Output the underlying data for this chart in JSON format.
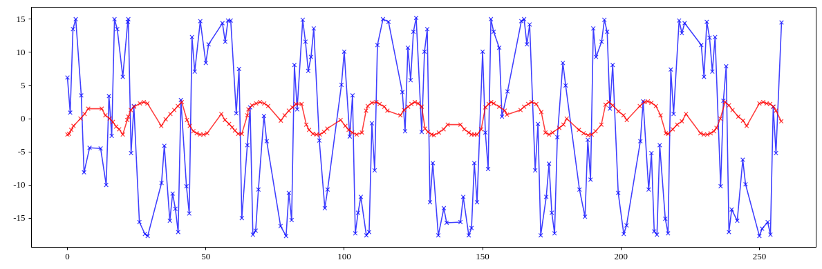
{
  "chart_data": {
    "type": "line",
    "marker": "cross",
    "line_style": "solid",
    "grid": false,
    "xlim": [
      -13,
      270.5
    ],
    "ylim": [
      -19.4,
      16.8
    ],
    "xticks": [
      0,
      50,
      100,
      150,
      200,
      250
    ],
    "yticks": [
      -15,
      -10,
      -5,
      0,
      5,
      10,
      15
    ],
    "series": [
      {
        "color": "#0000ff",
        "x": [
          0,
          1,
          2,
          3,
          5,
          6,
          8,
          12,
          14,
          15,
          16,
          17,
          18,
          20,
          21.8,
          22,
          23,
          24,
          26,
          28,
          29,
          34,
          35,
          37,
          38,
          39,
          40,
          41,
          43,
          44,
          45,
          46,
          48,
          50,
          51,
          56,
          57,
          58,
          59,
          61,
          62,
          63,
          65,
          66,
          67,
          68,
          69,
          71,
          72,
          77,
          79,
          80,
          81,
          82,
          83,
          85,
          86,
          87,
          88,
          89,
          91,
          93,
          94,
          99,
          100,
          102,
          103,
          104,
          105,
          106,
          108,
          109,
          110,
          111,
          112,
          114,
          116,
          121,
          122,
          123,
          124,
          125,
          126,
          128,
          129,
          130,
          131,
          132,
          134,
          136,
          137,
          142,
          143,
          145,
          146,
          147,
          148,
          150,
          151,
          152,
          153,
          154,
          156,
          157,
          159,
          164,
          165,
          166,
          167,
          169,
          170,
          171,
          173,
          174,
          175,
          176,
          177,
          179,
          180,
          185,
          187,
          188,
          189,
          190,
          191,
          193,
          194,
          195,
          196,
          197,
          199,
          201,
          202,
          207,
          208,
          210,
          211,
          212,
          213,
          214,
          216,
          217,
          218,
          219,
          221,
          222,
          223,
          229,
          230,
          231,
          232,
          233,
          234,
          236,
          237,
          238,
          239,
          240,
          242,
          244,
          245,
          250,
          251,
          253,
          254,
          255,
          256,
          258
        ],
        "values": [
          6.2,
          0.9,
          13.5,
          15.0,
          3.5,
          -8.1,
          -4.4,
          -4.5,
          -10.0,
          3.4,
          -2.6,
          15.0,
          13.5,
          6.3,
          14.6,
          15.0,
          -5.2,
          1.9,
          -15.6,
          -17.4,
          -17.7,
          -9.7,
          -4.1,
          -15.4,
          -11.3,
          -13.6,
          -17.1,
          2.8,
          -10.2,
          -14.3,
          12.3,
          7.1,
          14.7,
          8.4,
          11.2,
          14.4,
          11.6,
          14.8,
          14.8,
          0.8,
          7.5,
          -15.0,
          -4.0,
          1.7,
          -17.5,
          -16.9,
          -10.7,
          0.4,
          -3.4,
          -16.2,
          -17.7,
          -11.2,
          -15.3,
          8.1,
          1.4,
          14.9,
          11.6,
          7.2,
          9.3,
          13.6,
          -3.3,
          -13.5,
          -10.7,
          5.1,
          10.1,
          -2.7,
          3.5,
          -17.3,
          -14.2,
          -11.8,
          -17.6,
          -17.1,
          -0.7,
          -7.8,
          11.1,
          15.0,
          14.6,
          4.0,
          -1.9,
          10.7,
          5.8,
          13.1,
          15.2,
          -2.0,
          10.1,
          13.5,
          -12.6,
          -6.7,
          -17.6,
          -13.5,
          -15.7,
          -15.6,
          -11.8,
          -17.6,
          -16.5,
          -6.7,
          -12.6,
          10.1,
          -2.1,
          -7.6,
          15.0,
          13.1,
          10.7,
          0.3,
          4.1,
          14.7,
          15.0,
          11.2,
          14.2,
          -7.8,
          -0.8,
          -17.6,
          -11.8,
          -6.8,
          -14.2,
          -17.3,
          -2.8,
          8.4,
          5.0,
          -10.7,
          -14.8,
          -3.2,
          -9.2,
          13.6,
          9.3,
          11.6,
          14.9,
          13.1,
          1.5,
          8.1,
          -11.2,
          -17.4,
          -16.1,
          -3.4,
          2.6,
          -10.7,
          -5.2,
          -17.0,
          -17.5,
          -4.0,
          -15.1,
          -17.3,
          7.4,
          0.7,
          14.8,
          12.9,
          14.4,
          11.1,
          6.3,
          14.6,
          12.2,
          7.1,
          12.3,
          -10.2,
          2.7,
          7.9,
          -17.1,
          -13.7,
          -15.4,
          -6.2,
          -9.9,
          -17.7,
          -16.6,
          -15.6,
          -17.5,
          1.8,
          -5.2,
          14.5
        ]
      },
      {
        "color": "#ff0000",
        "x": [
          0,
          0.6,
          1.4,
          2.2,
          4.7,
          6.2,
          7.5,
          12.4,
          13.7,
          15.3,
          16.4,
          17.6,
          18.7,
          20,
          21.6,
          22,
          22.9,
          24.1,
          26.2,
          27.6,
          28.9,
          33.9,
          35.5,
          37.2,
          38.6,
          39.9,
          41.3,
          43.2,
          44.2,
          45.5,
          46.7,
          47.9,
          49.2,
          50.5,
          55.6,
          56.9,
          58.4,
          59.5,
          60.5,
          61.7,
          63,
          65,
          65.4,
          66.7,
          68.2,
          69.6,
          71.1,
          72.5,
          77.1,
          78.5,
          80,
          81.3,
          82.6,
          84.6,
          86.3,
          87.3,
          88.7,
          90,
          91.2,
          92.7,
          93.9,
          98.7,
          100.4,
          101.6,
          102.9,
          104.5,
          106.4,
          107.9,
          108.5,
          110,
          111.6,
          112.8,
          114.5,
          115.6,
          120.3,
          121.6,
          123.1,
          124.3,
          125.5,
          126.7,
          128,
          129.2,
          130.3,
          131.6,
          132.4,
          134.2,
          135.9,
          137.4,
          142,
          143.4,
          145,
          146,
          147,
          148,
          149.5,
          151,
          152.2,
          153.1,
          154,
          156,
          158,
          158.8,
          163.7,
          165,
          166.5,
          167.7,
          169.4,
          171.2,
          172.7,
          174,
          175.3,
          177.7,
          179.2,
          180.4,
          184.8,
          186.5,
          188.1,
          189.4,
          190.8,
          192.9,
          194.4,
          195.6,
          197,
          199.1,
          200.9,
          202.1,
          206.8,
          208.5,
          209.7,
          211,
          212.6,
          214.3,
          216.2,
          217,
          218.7,
          220.3,
          222,
          223.5,
          228.7,
          229.9,
          231.2,
          232.4,
          233.6,
          234.5,
          235.9,
          237.6,
          239,
          240.3,
          242.4,
          244.1,
          245.4,
          250,
          251.4,
          252.6,
          253.9,
          255.1,
          256,
          257.9
        ],
        "values": [
          -2.4,
          -2.3,
          -1.7,
          -1.1,
          0,
          0.7,
          1.5,
          1.5,
          0.5,
          0,
          -0.5,
          -1.2,
          -1.6,
          -2.4,
          -0.2,
          0.3,
          1.3,
          1.8,
          2.3,
          2.5,
          2.3,
          -1.1,
          -0.1,
          0.7,
          1.3,
          1.9,
          2.5,
          -0.2,
          -1.1,
          -1.9,
          -2.2,
          -2.4,
          -2.4,
          -2.2,
          0.7,
          -0.2,
          -0.8,
          -1.3,
          -1.8,
          -2.3,
          -2.3,
          0.5,
          1.4,
          2.0,
          2.3,
          2.5,
          2.3,
          1.9,
          -0.3,
          0.5,
          1.2,
          1.7,
          2.2,
          2.2,
          -0.9,
          -1.7,
          -2.3,
          -2.4,
          -2.4,
          -2.0,
          -1.5,
          -0.2,
          -1.1,
          -1.7,
          -2.1,
          -2.4,
          -2.1,
          1.2,
          1.9,
          2.4,
          2.5,
          2.2,
          1.8,
          1.2,
          0.5,
          1.3,
          1.8,
          2.2,
          2.5,
          2.3,
          1.8,
          -1.5,
          -2.0,
          -2.4,
          -2.5,
          -2.1,
          -1.6,
          -0.9,
          -0.9,
          -1.6,
          -2.1,
          -2.4,
          -2.4,
          -2.4,
          -1.6,
          1.7,
          2.2,
          2.5,
          2.3,
          1.8,
          1.2,
          0.6,
          1.3,
          1.8,
          2.2,
          2.5,
          2.2,
          1.0,
          -2.1,
          -2.4,
          -2.1,
          -1.4,
          -0.9,
          0,
          -1.7,
          -2.2,
          -2.5,
          -2.4,
          -1.9,
          -0.9,
          2.1,
          2.5,
          2.0,
          1.1,
          0.5,
          -0.2,
          1.9,
          2.5,
          2.6,
          2.4,
          1.9,
          0.5,
          -2.2,
          -2.3,
          -1.6,
          -0.9,
          -0.4,
          0.7,
          -2.2,
          -2.4,
          -2.4,
          -2.2,
          -1.9,
          -1.4,
          0,
          2.5,
          2.0,
          1.3,
          0.3,
          -0.3,
          -1.1,
          2.3,
          2.5,
          2.3,
          2.2,
          1.8,
          1.2,
          -0.4
        ]
      }
    ]
  }
}
